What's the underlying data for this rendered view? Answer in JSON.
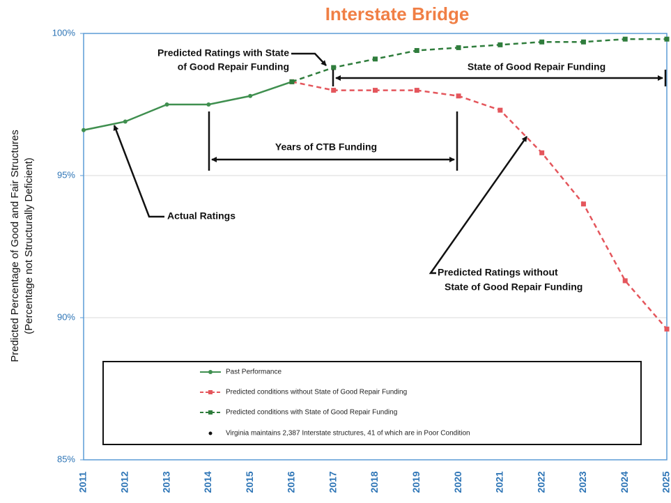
{
  "chart_data": {
    "type": "line",
    "title": "Interstate Bridge",
    "y_label": [
      "Predicted Percentage of Good and Fair Structures",
      "(Percentage not Structurally Deficient)"
    ],
    "categories": [
      "2011",
      "2012",
      "2013",
      "2014",
      "2015",
      "2016",
      "2017",
      "2018",
      "2019",
      "2020",
      "2021",
      "2022",
      "2023",
      "2024",
      "2025"
    ],
    "series": [
      {
        "name": "Past Performance",
        "color": "#3f8f4f",
        "dash": false,
        "marker": "circle",
        "values": [
          96.6,
          96.9,
          97.5,
          97.5,
          97.8,
          98.3,
          null,
          null,
          null,
          null,
          null,
          null,
          null,
          null,
          null
        ]
      },
      {
        "name": "Predicted conditions without State of Good Repair Funding",
        "color": "#e4565c",
        "dash": true,
        "marker": "square",
        "values": [
          null,
          null,
          null,
          null,
          null,
          98.3,
          98.0,
          98.0,
          98.0,
          97.8,
          97.3,
          95.8,
          94.0,
          91.3,
          89.6
        ]
      },
      {
        "name": "Predicted conditions with State of Good Repair Funding",
        "color": "#2f7d3c",
        "dash": true,
        "marker": "square",
        "values": [
          null,
          null,
          null,
          null,
          null,
          98.3,
          98.8,
          99.1,
          99.4,
          99.5,
          99.6,
          99.7,
          99.7,
          99.8,
          99.8
        ]
      }
    ],
    "ylim": [
      85,
      100
    ],
    "yticks": [
      {
        "value": 85,
        "label": "85%"
      },
      {
        "value": 90,
        "label": "90%"
      },
      {
        "value": 95,
        "label": "95%"
      },
      {
        "value": 100,
        "label": "100%"
      }
    ],
    "grid": true,
    "note": "Virginia maintains 2,387 Interstate structures, 41 of which are in Poor Condition",
    "annotations": [
      [
        "Predicted Ratings with State",
        "of Good Repair Funding"
      ],
      [
        "State of Good Repair Funding"
      ],
      [
        "Years of CTB Funding"
      ],
      [
        "Actual Ratings"
      ],
      [
        "Predicted Ratings without",
        "State of Good Repair Funding"
      ]
    ]
  }
}
